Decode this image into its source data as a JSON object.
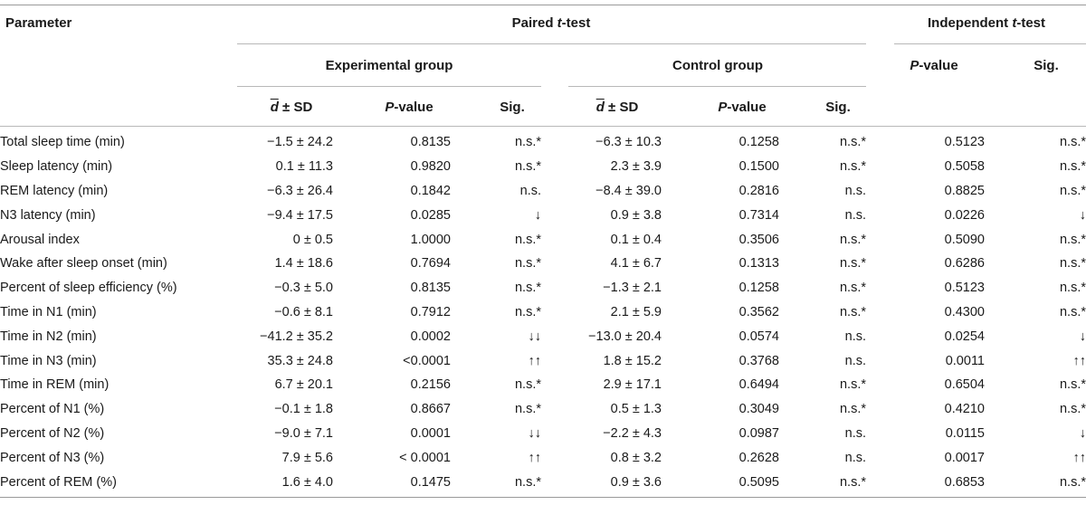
{
  "header": {
    "parameter": "Parameter",
    "paired": "Paired t-test",
    "paired_pre": "Paired ",
    "paired_t": "t",
    "paired_post": "-test",
    "independent_pre": "Independent ",
    "independent_t": "t",
    "independent_post": "-test",
    "experimental": "Experimental group",
    "control": "Control group",
    "d": "d",
    "pm_sd": " ± SD",
    "p_italic": "P",
    "p_rest": "-value",
    "sig": "Sig."
  },
  "rows": [
    {
      "parameter": "Total sleep time (min)",
      "exp_d": "−1.5 ± 24.2",
      "exp_p": "0.8135",
      "exp_sig": "n.s.*",
      "ctl_d": "−6.3 ± 10.3",
      "ctl_p": "0.1258",
      "ctl_sig": "n.s.*",
      "ind_p": "0.5123",
      "ind_sig": "n.s.*"
    },
    {
      "parameter": "Sleep latency (min)",
      "exp_d": "0.1 ± 11.3",
      "exp_p": "0.9820",
      "exp_sig": "n.s.*",
      "ctl_d": "2.3 ± 3.9",
      "ctl_p": "0.1500",
      "ctl_sig": "n.s.*",
      "ind_p": "0.5058",
      "ind_sig": "n.s.*"
    },
    {
      "parameter": "REM latency (min)",
      "exp_d": "−6.3 ± 26.4",
      "exp_p": "0.1842",
      "exp_sig": "n.s.",
      "ctl_d": "−8.4 ± 39.0",
      "ctl_p": "0.2816",
      "ctl_sig": "n.s.",
      "ind_p": "0.8825",
      "ind_sig": "n.s.*"
    },
    {
      "parameter": "N3 latency (min)",
      "exp_d": "−9.4 ± 17.5",
      "exp_p": "0.0285",
      "exp_sig": "↓",
      "ctl_d": "0.9 ± 3.8",
      "ctl_p": "0.7314",
      "ctl_sig": "n.s.",
      "ind_p": "0.0226",
      "ind_sig": "↓"
    },
    {
      "parameter": "Arousal index",
      "exp_d": "0 ± 0.5",
      "exp_p": "1.0000",
      "exp_sig": "n.s.*",
      "ctl_d": "0.1 ± 0.4",
      "ctl_p": "0.3506",
      "ctl_sig": "n.s.*",
      "ind_p": "0.5090",
      "ind_sig": "n.s.*"
    },
    {
      "parameter": "Wake after sleep onset (min)",
      "exp_d": "1.4 ± 18.6",
      "exp_p": "0.7694",
      "exp_sig": "n.s.*",
      "ctl_d": "4.1 ± 6.7",
      "ctl_p": "0.1313",
      "ctl_sig": "n.s.*",
      "ind_p": "0.6286",
      "ind_sig": "n.s.*"
    },
    {
      "parameter": "Percent of sleep efficiency (%)",
      "exp_d": "−0.3 ± 5.0",
      "exp_p": "0.8135",
      "exp_sig": "n.s.*",
      "ctl_d": "−1.3 ± 2.1",
      "ctl_p": "0.1258",
      "ctl_sig": "n.s.*",
      "ind_p": "0.5123",
      "ind_sig": "n.s.*"
    },
    {
      "parameter": "Time in N1 (min)",
      "exp_d": "−0.6 ± 8.1",
      "exp_p": "0.7912",
      "exp_sig": "n.s.*",
      "ctl_d": "2.1 ± 5.9",
      "ctl_p": "0.3562",
      "ctl_sig": "n.s.*",
      "ind_p": "0.4300",
      "ind_sig": "n.s.*"
    },
    {
      "parameter": "Time in N2 (min)",
      "exp_d": "−41.2 ± 35.2",
      "exp_p": "0.0002",
      "exp_sig": "↓↓",
      "ctl_d": "−13.0 ± 20.4",
      "ctl_p": "0.0574",
      "ctl_sig": "n.s.",
      "ind_p": "0.0254",
      "ind_sig": "↓"
    },
    {
      "parameter": "Time in N3 (min)",
      "exp_d": "35.3 ± 24.8",
      "exp_p": "<0.0001",
      "exp_sig": "↑↑",
      "ctl_d": "1.8 ± 15.2",
      "ctl_p": "0.3768",
      "ctl_sig": "n.s.",
      "ind_p": "0.0011",
      "ind_sig": "↑↑"
    },
    {
      "parameter": "Time in REM (min)",
      "exp_d": "6.7 ± 20.1",
      "exp_p": "0.2156",
      "exp_sig": "n.s.*",
      "ctl_d": "2.9 ± 17.1",
      "ctl_p": "0.6494",
      "ctl_sig": "n.s.*",
      "ind_p": "0.6504",
      "ind_sig": "n.s.*"
    },
    {
      "parameter": "Percent of N1 (%)",
      "exp_d": "−0.1 ± 1.8",
      "exp_p": "0.8667",
      "exp_sig": "n.s.*",
      "ctl_d": "0.5 ± 1.3",
      "ctl_p": "0.3049",
      "ctl_sig": "n.s.*",
      "ind_p": "0.4210",
      "ind_sig": "n.s.*"
    },
    {
      "parameter": "Percent of N2 (%)",
      "exp_d": "−9.0 ± 7.1",
      "exp_p": "0.0001",
      "exp_sig": "↓↓",
      "ctl_d": "−2.2 ± 4.3",
      "ctl_p": "0.0987",
      "ctl_sig": "n.s.",
      "ind_p": "0.0115",
      "ind_sig": "↓"
    },
    {
      "parameter": "Percent of N3 (%)",
      "exp_d": "7.9 ± 5.6",
      "exp_p": "< 0.0001",
      "exp_sig": "↑↑",
      "ctl_d": "0.8 ± 3.2",
      "ctl_p": "0.2628",
      "ctl_sig": "n.s.",
      "ind_p": "0.0017",
      "ind_sig": "↑↑"
    },
    {
      "parameter": "Percent of REM (%)",
      "exp_d": "1.6 ± 4.0",
      "exp_p": "0.1475",
      "exp_sig": "n.s.*",
      "ctl_d": "0.9 ± 3.6",
      "ctl_p": "0.5095",
      "ctl_sig": "n.s.*",
      "ind_p": "0.6853",
      "ind_sig": "n.s.*"
    }
  ]
}
